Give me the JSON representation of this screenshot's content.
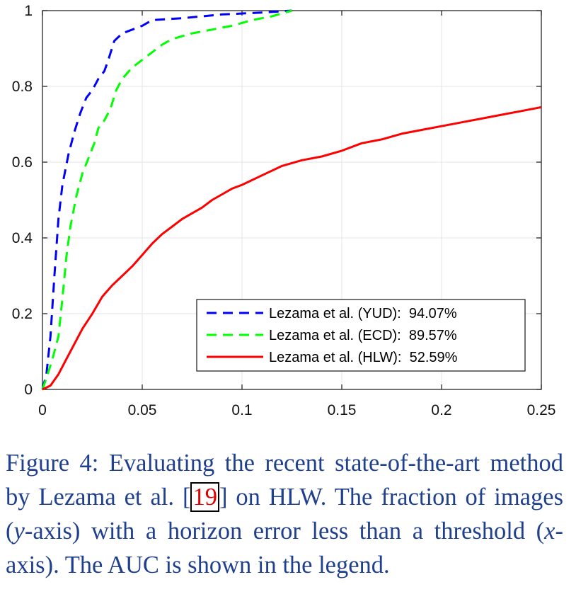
{
  "chart_data": {
    "type": "line",
    "title": "",
    "xlabel": "",
    "ylabel": "",
    "xlim": [
      0,
      0.25
    ],
    "ylim": [
      0,
      1
    ],
    "grid": true,
    "legend_position": "bottom-right",
    "x_ticks": [
      "0",
      "0.05",
      "0.1",
      "0.15",
      "0.2",
      "0.25"
    ],
    "y_ticks": [
      "0",
      "0.2",
      "0.4",
      "0.6",
      "0.8",
      "1"
    ],
    "series": [
      {
        "name": "Lezama et al. (YUD):  94.07%",
        "color": "#0000ff",
        "style": "dashed",
        "points": [
          [
            0,
            0
          ],
          [
            0.002,
            0.04
          ],
          [
            0.004,
            0.14
          ],
          [
            0.006,
            0.3
          ],
          [
            0.008,
            0.45
          ],
          [
            0.01,
            0.54
          ],
          [
            0.013,
            0.62
          ],
          [
            0.016,
            0.68
          ],
          [
            0.019,
            0.73
          ],
          [
            0.022,
            0.77
          ],
          [
            0.025,
            0.79
          ],
          [
            0.028,
            0.82
          ],
          [
            0.031,
            0.84
          ],
          [
            0.033,
            0.87
          ],
          [
            0.036,
            0.92
          ],
          [
            0.04,
            0.94
          ],
          [
            0.045,
            0.95
          ],
          [
            0.05,
            0.96
          ],
          [
            0.055,
            0.975
          ],
          [
            0.07,
            0.98
          ],
          [
            0.09,
            0.99
          ],
          [
            0.11,
            0.995
          ],
          [
            0.125,
            1.0
          ]
        ]
      },
      {
        "name": "Lezama et al. (ECD):  89.57%",
        "color": "#00ff00",
        "style": "dashed",
        "points": [
          [
            0,
            0
          ],
          [
            0.002,
            0.03
          ],
          [
            0.005,
            0.08
          ],
          [
            0.008,
            0.14
          ],
          [
            0.01,
            0.24
          ],
          [
            0.012,
            0.35
          ],
          [
            0.014,
            0.43
          ],
          [
            0.017,
            0.51
          ],
          [
            0.02,
            0.57
          ],
          [
            0.023,
            0.61
          ],
          [
            0.026,
            0.65
          ],
          [
            0.028,
            0.69
          ],
          [
            0.031,
            0.71
          ],
          [
            0.034,
            0.74
          ],
          [
            0.037,
            0.79
          ],
          [
            0.04,
            0.82
          ],
          [
            0.045,
            0.85
          ],
          [
            0.05,
            0.87
          ],
          [
            0.055,
            0.89
          ],
          [
            0.06,
            0.91
          ],
          [
            0.065,
            0.925
          ],
          [
            0.075,
            0.94
          ],
          [
            0.085,
            0.95
          ],
          [
            0.095,
            0.96
          ],
          [
            0.105,
            0.975
          ],
          [
            0.115,
            0.985
          ],
          [
            0.125,
            1.0
          ]
        ]
      },
      {
        "name": "Lezama et al. (HLW):  52.59%",
        "color": "#ff0000",
        "style": "solid",
        "points": [
          [
            0,
            0
          ],
          [
            0.004,
            0.01
          ],
          [
            0.008,
            0.04
          ],
          [
            0.012,
            0.08
          ],
          [
            0.016,
            0.12
          ],
          [
            0.02,
            0.16
          ],
          [
            0.025,
            0.2
          ],
          [
            0.03,
            0.245
          ],
          [
            0.035,
            0.275
          ],
          [
            0.04,
            0.3
          ],
          [
            0.045,
            0.325
          ],
          [
            0.05,
            0.355
          ],
          [
            0.055,
            0.385
          ],
          [
            0.06,
            0.41
          ],
          [
            0.065,
            0.43
          ],
          [
            0.07,
            0.45
          ],
          [
            0.075,
            0.465
          ],
          [
            0.08,
            0.48
          ],
          [
            0.085,
            0.5
          ],
          [
            0.09,
            0.515
          ],
          [
            0.095,
            0.53
          ],
          [
            0.1,
            0.54
          ],
          [
            0.11,
            0.565
          ],
          [
            0.12,
            0.59
          ],
          [
            0.13,
            0.605
          ],
          [
            0.14,
            0.615
          ],
          [
            0.15,
            0.63
          ],
          [
            0.16,
            0.65
          ],
          [
            0.17,
            0.66
          ],
          [
            0.18,
            0.675
          ],
          [
            0.19,
            0.685
          ],
          [
            0.2,
            0.695
          ],
          [
            0.21,
            0.705
          ],
          [
            0.22,
            0.715
          ],
          [
            0.23,
            0.725
          ],
          [
            0.24,
            0.735
          ],
          [
            0.25,
            0.745
          ]
        ]
      }
    ]
  },
  "caption": {
    "lead": "Figure 4:  Evaluating the recent state-of-the-art method by Lezama et al. [",
    "ref": "19",
    "mid": "] on HLW. The fraction of images (",
    "y_var": "y",
    "mid2": "-axis) with a horizon error less than a threshold (",
    "x_var": "x",
    "tail": "-axis).  The AUC is shown in the legend."
  }
}
